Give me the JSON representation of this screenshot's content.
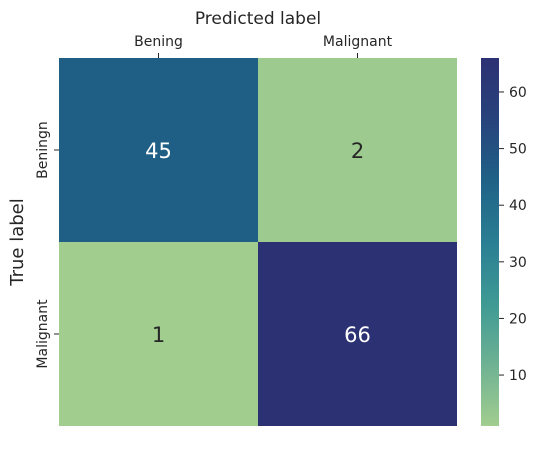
{
  "chart_data": {
    "type": "heatmap",
    "title": "",
    "xlabel": "Predicted label",
    "ylabel": "True label",
    "x_categories": [
      "Bening",
      "Malignant"
    ],
    "y_categories": [
      "Beningn",
      "Malignant"
    ],
    "values": [
      [
        45,
        2
      ],
      [
        1,
        66
      ]
    ],
    "colorbar": {
      "ticks": [
        10,
        20,
        30,
        40,
        50,
        60
      ],
      "tick_labels": [
        "10",
        "20",
        "30",
        "40",
        "50",
        "60"
      ],
      "range": [
        1,
        66
      ]
    },
    "colormap": [
      "#a1cd8f",
      "#6db193",
      "#3f9a94",
      "#2a7e93",
      "#1f6186",
      "#27437c",
      "#2c3173"
    ],
    "xaxis_position": "top",
    "grid": false,
    "legend": "colorbar-right"
  }
}
